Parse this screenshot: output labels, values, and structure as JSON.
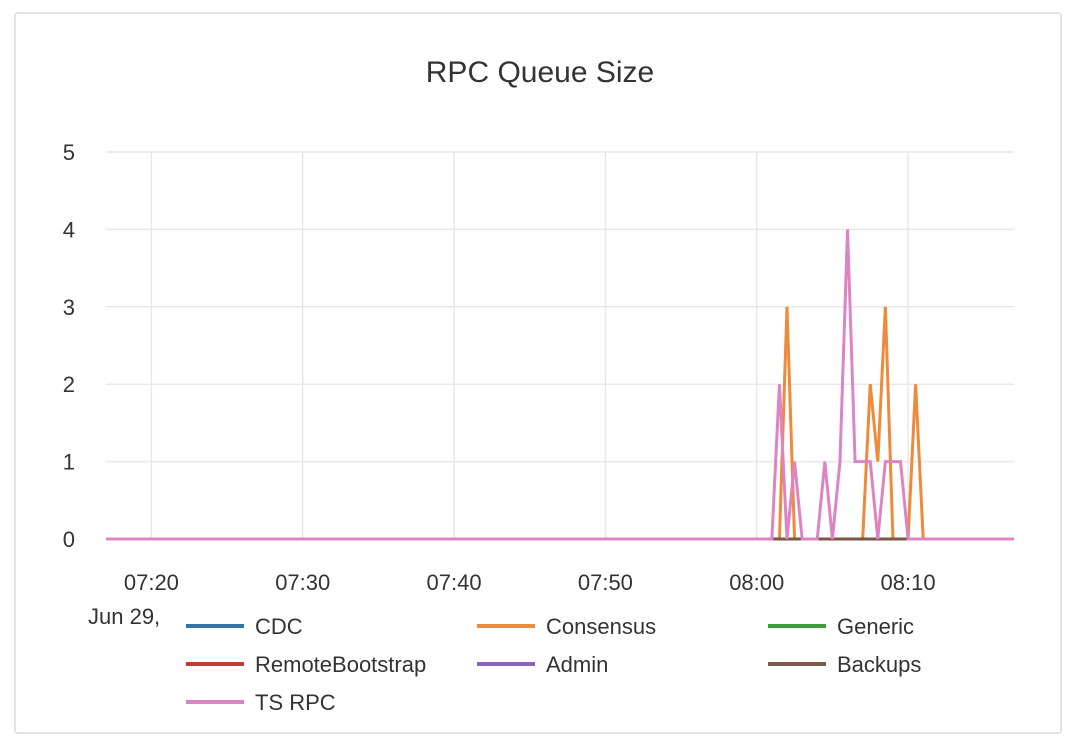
{
  "chart_data": {
    "type": "line",
    "title": "RPC Queue Size",
    "xlabel": "",
    "ylabel": "",
    "date_label": "Jun 29,",
    "x_ticks": [
      "07:20",
      "07:30",
      "07:40",
      "07:50",
      "08:00",
      "08:10"
    ],
    "y_ticks": [
      "0",
      "1",
      "2",
      "3",
      "4",
      "5"
    ],
    "x_range": [
      "07:17",
      "08:17"
    ],
    "ylim": [
      0,
      5
    ],
    "grid": true,
    "legend_position": "bottom",
    "series": [
      {
        "name": "CDC",
        "color": "#3274a8",
        "x": [
          "07:17",
          "08:17"
        ],
        "values": [
          0,
          0
        ]
      },
      {
        "name": "Consensus",
        "color": "#ee8a3b",
        "x": [
          "07:17",
          "08:01",
          "08:01.5",
          "08:02",
          "08:02.5",
          "08:06.5",
          "08:07",
          "08:07.5",
          "08:08",
          "08:08.5",
          "08:09",
          "08:09.5",
          "08:10",
          "08:10.5",
          "08:11",
          "08:17"
        ],
        "values": [
          0,
          0,
          0,
          3,
          0,
          0,
          0,
          2,
          1,
          3,
          0,
          0,
          0,
          2,
          0,
          0
        ]
      },
      {
        "name": "Generic",
        "color": "#3a9e3a",
        "x": [
          "07:17",
          "08:17"
        ],
        "values": [
          0,
          0
        ]
      },
      {
        "name": "RemoteBootstrap",
        "color": "#c33a35",
        "x": [
          "07:17",
          "08:17"
        ],
        "values": [
          0,
          0
        ]
      },
      {
        "name": "Admin",
        "color": "#8b62b8",
        "x": [
          "07:17",
          "08:17"
        ],
        "values": [
          0,
          0
        ]
      },
      {
        "name": "Backups",
        "color": "#7c5647",
        "x": [
          "07:17",
          "08:17"
        ],
        "values": [
          0,
          0
        ]
      },
      {
        "name": "TS RPC",
        "color": "#dc84c4",
        "x": [
          "07:17",
          "08:01",
          "08:01.5",
          "08:02",
          "08:02.5",
          "08:03",
          "08:03.5",
          "08:04",
          "08:04.5",
          "08:05",
          "08:05.5",
          "08:06",
          "08:06.5",
          "08:07",
          "08:07.5",
          "08:08",
          "08:08.5",
          "08:09",
          "08:09.5",
          "08:10",
          "08:10.5",
          "08:11",
          "08:17"
        ],
        "values": [
          0,
          0,
          2,
          0,
          1,
          0,
          0,
          0,
          1,
          0,
          1,
          4,
          1,
          1,
          1,
          0,
          1,
          1,
          1,
          0,
          0,
          0,
          0
        ]
      }
    ]
  }
}
